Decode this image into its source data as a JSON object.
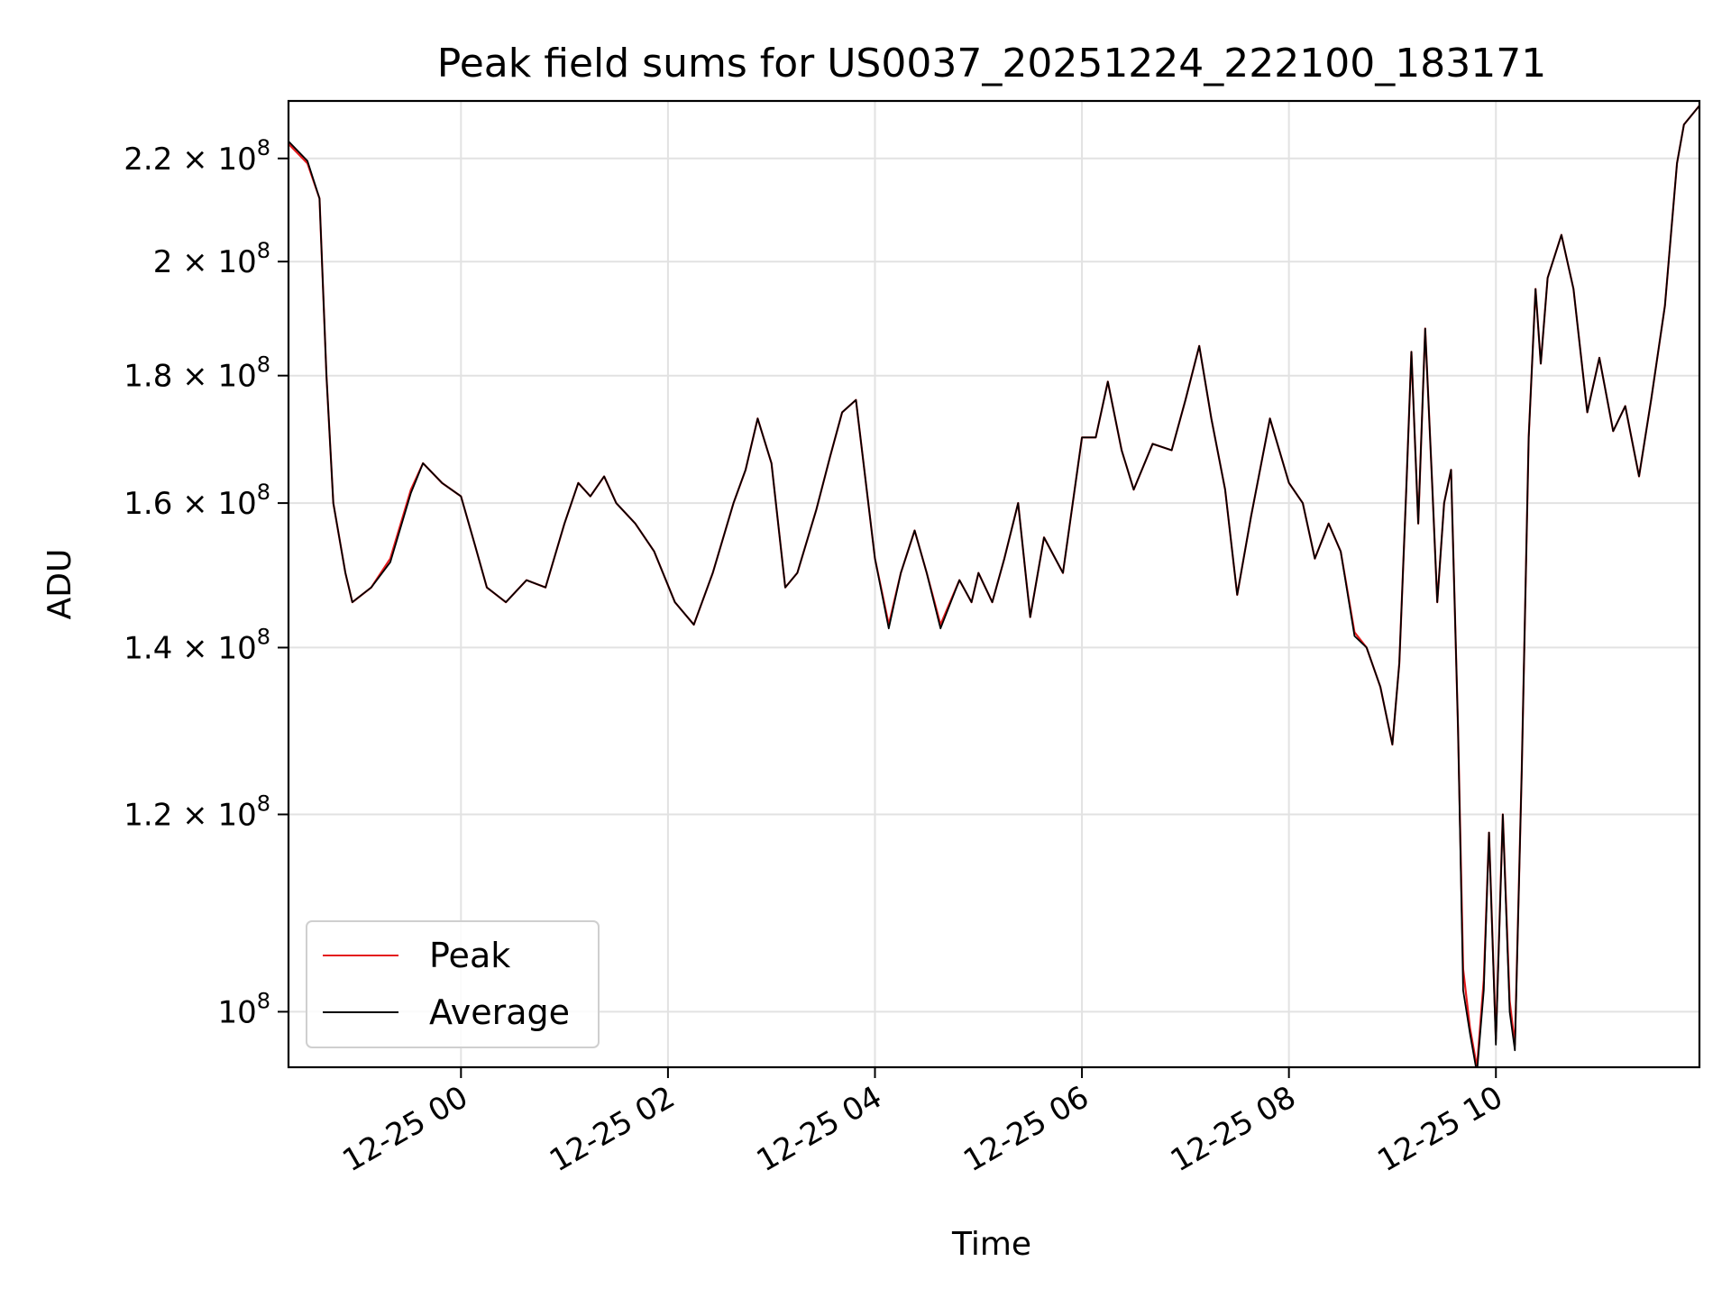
{
  "chart_data": {
    "type": "line",
    "title": "Peak field sums for US0037_20251224_222100_183171",
    "xlabel": "Time",
    "ylabel": "ADU",
    "y_scale": "log",
    "grid": true,
    "legend_placement": "lower-left",
    "x_range": [
      "2025-12-24 22:20",
      "2025-12-25 11:58"
    ],
    "ylim": [
      95000000,
      232000000
    ],
    "x_ticks": [
      {
        "value": "2025-12-25 00:00",
        "label": "12-25 00"
      },
      {
        "value": "2025-12-25 02:00",
        "label": "12-25 02"
      },
      {
        "value": "2025-12-25 04:00",
        "label": "12-25 04"
      },
      {
        "value": "2025-12-25 06:00",
        "label": "12-25 06"
      },
      {
        "value": "2025-12-25 08:00",
        "label": "12-25 08"
      },
      {
        "value": "2025-12-25 10:00",
        "label": "12-25 10"
      }
    ],
    "y_ticks": [
      {
        "value": 100000000,
        "mantissa": "",
        "exponent": "8"
      },
      {
        "value": 120000000,
        "mantissa": "1.2",
        "exponent": "8"
      },
      {
        "value": 140000000,
        "mantissa": "1.4",
        "exponent": "8"
      },
      {
        "value": 160000000,
        "mantissa": "1.6",
        "exponent": "8"
      },
      {
        "value": 180000000,
        "mantissa": "1.8",
        "exponent": "8"
      },
      {
        "value": 200000000,
        "mantissa": "2",
        "exponent": "8"
      },
      {
        "value": 220000000,
        "mantissa": "2.2",
        "exponent": "8"
      }
    ],
    "x": [
      "2025-12-24 22:20",
      "2025-12-24 22:31",
      "2025-12-24 22:38",
      "2025-12-24 22:42",
      "2025-12-24 22:46",
      "2025-12-24 22:53",
      "2025-12-24 22:57",
      "2025-12-24 23:08",
      "2025-12-24 23:19",
      "2025-12-24 23:31",
      "2025-12-24 23:38",
      "2025-12-24 23:49",
      "2025-12-25 00:00",
      "2025-12-25 00:08",
      "2025-12-25 00:15",
      "2025-12-25 00:26",
      "2025-12-25 00:38",
      "2025-12-25 00:49",
      "2025-12-25 01:00",
      "2025-12-25 01:08",
      "2025-12-25 01:15",
      "2025-12-25 01:23",
      "2025-12-25 01:30",
      "2025-12-25 01:41",
      "2025-12-25 01:52",
      "2025-12-25 02:04",
      "2025-12-25 02:15",
      "2025-12-25 02:26",
      "2025-12-25 02:38",
      "2025-12-25 02:45",
      "2025-12-25 02:52",
      "2025-12-25 03:00",
      "2025-12-25 03:08",
      "2025-12-25 03:15",
      "2025-12-25 03:26",
      "2025-12-25 03:34",
      "2025-12-25 03:41",
      "2025-12-25 03:49",
      "2025-12-25 04:00",
      "2025-12-25 04:08",
      "2025-12-25 04:15",
      "2025-12-25 04:23",
      "2025-12-25 04:30",
      "2025-12-25 04:38",
      "2025-12-25 04:49",
      "2025-12-25 04:56",
      "2025-12-25 05:00",
      "2025-12-25 05:08",
      "2025-12-25 05:15",
      "2025-12-25 05:23",
      "2025-12-25 05:30",
      "2025-12-25 05:38",
      "2025-12-25 05:49",
      "2025-12-25 06:00",
      "2025-12-25 06:08",
      "2025-12-25 06:15",
      "2025-12-25 06:23",
      "2025-12-25 06:30",
      "2025-12-25 06:41",
      "2025-12-25 06:52",
      "2025-12-25 07:00",
      "2025-12-25 07:08",
      "2025-12-25 07:15",
      "2025-12-25 07:23",
      "2025-12-25 07:30",
      "2025-12-25 07:38",
      "2025-12-25 07:49",
      "2025-12-25 08:00",
      "2025-12-25 08:08",
      "2025-12-25 08:15",
      "2025-12-25 08:23",
      "2025-12-25 08:30",
      "2025-12-25 08:38",
      "2025-12-25 08:45",
      "2025-12-25 08:53",
      "2025-12-25 09:00",
      "2025-12-25 09:04",
      "2025-12-25 09:08",
      "2025-12-25 09:11",
      "2025-12-25 09:15",
      "2025-12-25 09:19",
      "2025-12-25 09:23",
      "2025-12-25 09:26",
      "2025-12-25 09:30",
      "2025-12-25 09:34",
      "2025-12-25 09:38",
      "2025-12-25 09:41",
      "2025-12-25 09:45",
      "2025-12-25 09:49",
      "2025-12-25 09:53",
      "2025-12-25 09:56",
      "2025-12-25 10:00",
      "2025-12-25 10:04",
      "2025-12-25 10:08",
      "2025-12-25 10:11",
      "2025-12-25 10:15",
      "2025-12-25 10:19",
      "2025-12-25 10:23",
      "2025-12-25 10:26",
      "2025-12-25 10:30",
      "2025-12-25 10:38",
      "2025-12-25 10:45",
      "2025-12-25 10:53",
      "2025-12-25 11:00",
      "2025-12-25 11:08",
      "2025-12-25 11:15",
      "2025-12-25 11:23",
      "2025-12-25 11:30",
      "2025-12-25 11:38",
      "2025-12-25 11:45",
      "2025-12-25 11:49",
      "2025-12-25 11:58"
    ],
    "series": [
      {
        "name": "Peak",
        "color": "#e41a1c",
        "values": [
          223000000,
          219000000,
          212000000,
          180000000,
          160000000,
          150000000,
          146000000,
          148000000,
          152000000,
          162000000,
          166000000,
          163000000,
          161000000,
          154000000,
          148000000,
          146000000,
          149000000,
          148000000,
          157000000,
          163000000,
          161000000,
          164000000,
          160000000,
          157000000,
          153000000,
          146000000,
          143000000,
          150000000,
          160000000,
          165000000,
          173000000,
          166000000,
          148000000,
          150000000,
          159000000,
          167000000,
          174000000,
          176000000,
          152000000,
          143000000,
          150000000,
          156000000,
          150000000,
          143000000,
          149000000,
          146000000,
          150000000,
          146000000,
          152000000,
          160000000,
          144000000,
          155000000,
          150000000,
          170000000,
          170000000,
          179000000,
          168000000,
          162000000,
          169000000,
          168000000,
          176000000,
          185000000,
          173000000,
          162000000,
          147000000,
          158000000,
          173000000,
          163000000,
          160000000,
          152000000,
          157000000,
          153000000,
          142000000,
          140000000,
          135000000,
          128000000,
          138000000,
          162000000,
          184000000,
          157000000,
          188000000,
          163000000,
          146000000,
          160000000,
          165000000,
          130000000,
          104000000,
          98500000,
          95000000,
          103000000,
          118000000,
          97500000,
          120000000,
          101000000,
          97000000,
          125000000,
          170000000,
          195000000,
          182000000,
          197000000,
          205000000,
          195000000,
          174000000,
          183000000,
          171000000,
          175000000,
          164000000,
          176000000,
          192000000,
          219000000,
          227000000,
          231000000
        ]
      },
      {
        "name": "Average",
        "color": "#000000",
        "values": [
          223500000,
          219500000,
          212000000,
          180000000,
          160000000,
          150000000,
          146000000,
          148000000,
          151500000,
          161500000,
          166000000,
          163000000,
          161000000,
          154000000,
          148000000,
          146000000,
          149000000,
          148000000,
          157000000,
          163000000,
          161000000,
          164000000,
          160000000,
          157000000,
          153000000,
          146000000,
          143000000,
          150000000,
          160000000,
          165000000,
          173000000,
          166000000,
          148000000,
          150000000,
          159000000,
          167000000,
          174000000,
          176000000,
          152000000,
          142500000,
          150000000,
          156000000,
          150000000,
          142500000,
          149000000,
          146000000,
          150000000,
          146000000,
          152000000,
          160000000,
          144000000,
          155000000,
          150000000,
          170000000,
          170000000,
          179000000,
          168000000,
          162000000,
          169000000,
          168000000,
          176000000,
          185000000,
          173000000,
          162000000,
          147000000,
          158000000,
          173000000,
          163000000,
          160000000,
          152000000,
          157000000,
          153000000,
          141500000,
          140000000,
          135000000,
          128000000,
          138000000,
          162000000,
          184000000,
          157000000,
          188000000,
          163000000,
          146000000,
          160000000,
          165000000,
          130000000,
          102000000,
          98000000,
          94500000,
          102000000,
          118000000,
          97000000,
          120000000,
          100000000,
          96500000,
          125000000,
          170000000,
          195000000,
          182000000,
          197000000,
          205000000,
          195000000,
          174000000,
          183000000,
          171000000,
          175000000,
          164000000,
          176000000,
          192000000,
          219000000,
          227000000,
          231000000
        ]
      }
    ]
  }
}
